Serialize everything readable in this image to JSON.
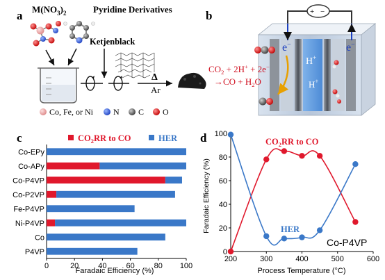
{
  "panel_a": {
    "label": "a",
    "reagent_metal": "M(NO",
    "reagent_metal_sub1": "3",
    "reagent_metal_close": ")",
    "reagent_metal_sub2": "2",
    "reagent_ligand": "Pyridine Derivatives",
    "support": "Ketjenblack",
    "heat": "Δ",
    "atmosphere": "Ar",
    "legend": [
      {
        "label": "Co, Fe, or Ni",
        "color": "#f0a0a0"
      },
      {
        "label": "N",
        "color": "#2255dd"
      },
      {
        "label": "C",
        "color": "#333333"
      },
      {
        "label": "O",
        "color": "#e01010"
      }
    ]
  },
  "panel_b": {
    "label": "b",
    "electrode_left": "e",
    "electrode_right": "e",
    "electron_sup": "−",
    "cell_plus": "+",
    "cell_minus": "−",
    "proton_top": "H",
    "proton_mid": "H",
    "proton_sup": "+",
    "reaction_line1": "CO",
    "reaction_line1b": " + 2H",
    "reaction_line1c": " + 2e",
    "reaction_line2": "→CO + H",
    "reaction_line2b": "O",
    "sub2": "2",
    "sup_plus": "+",
    "sup_minus": "−"
  },
  "panel_c": {
    "label": "c",
    "legend_co2rr_pre": "CO",
    "legend_co2rr_sub": "2",
    "legend_co2rr_post": "RR to CO",
    "legend_her": "HER",
    "colors": {
      "co2rr": "#e0182c",
      "her": "#3a78c8"
    },
    "chart_data": {
      "type": "bar",
      "orientation": "horizontal-stacked",
      "categories": [
        "Co-EPy",
        "Co-APy",
        "Co-P4VP",
        "Co-P2VP",
        "Fe-P4VP",
        "Ni-P4VP",
        "Co",
        "P4VP"
      ],
      "series": [
        {
          "name": "CO2RR to CO",
          "values": [
            0,
            38,
            85,
            7,
            0,
            6,
            0,
            0
          ]
        },
        {
          "name": "HER",
          "values": [
            100,
            62,
            12,
            85,
            63,
            94,
            85,
            65
          ]
        }
      ],
      "xlabel": "Faradaic Efficiency  (%)",
      "xlim": [
        0,
        100
      ],
      "xticks": [
        "0",
        "20",
        "40",
        "60",
        "80",
        "100"
      ]
    }
  },
  "panel_d": {
    "label": "d",
    "colors": {
      "co2rr": "#e0182c",
      "her": "#3a78c8"
    },
    "label_co2rr_pre": "CO",
    "label_co2rr_sub": "2",
    "label_co2rr_post": "RR to CO",
    "label_her": "HER",
    "label_sample": "Co-P4VP",
    "chart_data": {
      "type": "line",
      "x": [
        200,
        300,
        350,
        400,
        450,
        550
      ],
      "series": [
        {
          "name": "CO2RR to CO",
          "values": [
            0,
            78,
            85,
            81,
            81,
            25
          ]
        },
        {
          "name": "HER",
          "values": [
            99,
            13,
            11,
            12,
            18,
            74
          ]
        }
      ],
      "xlabel": "Process Temperature (°C)",
      "ylabel": "Faradaic Efficiency (%)",
      "xlim": [
        200,
        600
      ],
      "ylim": [
        0,
        100
      ],
      "xticks": [
        "200",
        "300",
        "400",
        "500",
        "600"
      ],
      "yticks": [
        "0",
        "20",
        "40",
        "60",
        "80",
        "100"
      ]
    }
  }
}
